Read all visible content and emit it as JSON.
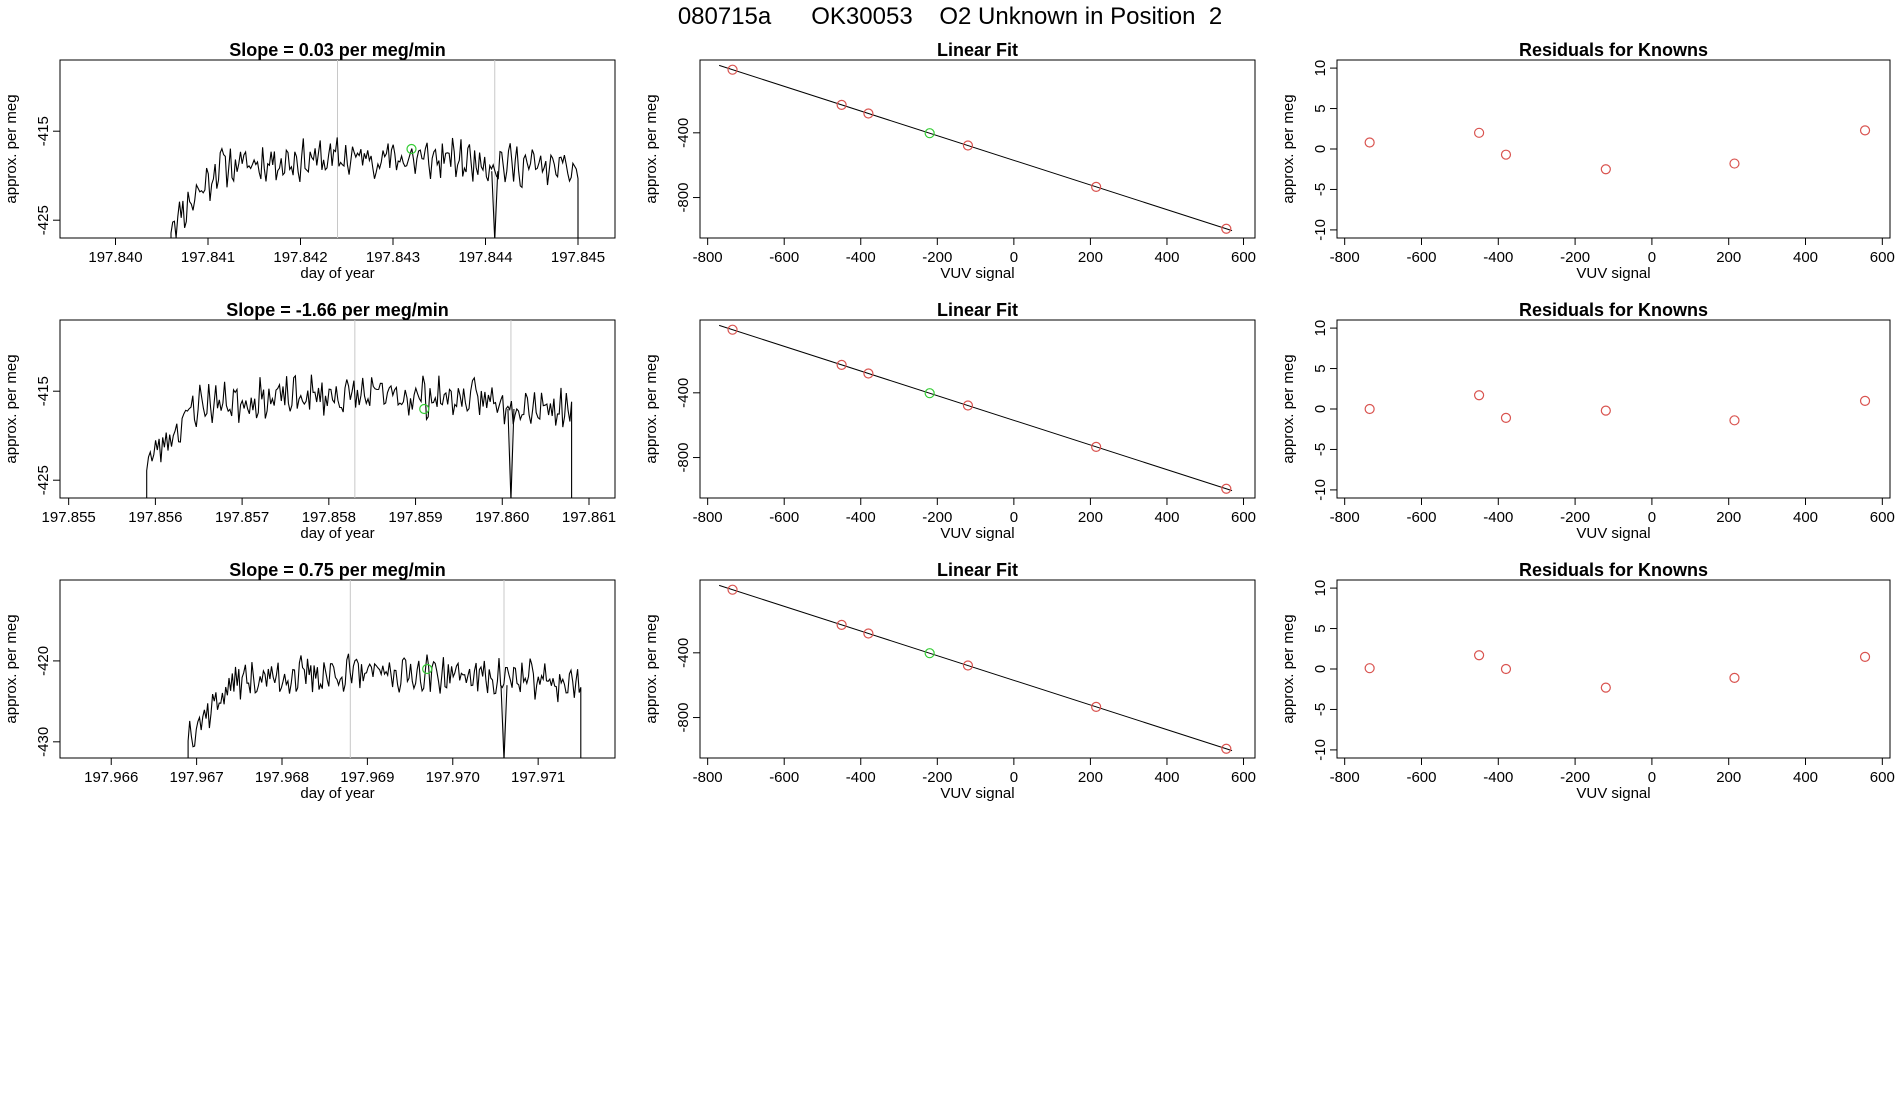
{
  "figure": {
    "title": "080715a      OK30053    O2 Unknown in Position  2"
  },
  "colors": {
    "trace": "#000000",
    "marker_known": "#d9534f",
    "marker_unknown": "#33cc33",
    "vline": "#c8c8c8"
  },
  "chart_data": [
    {
      "type": "line",
      "panel": "timeseries",
      "title": "Slope =  0.03  per meg/min",
      "xlabel": "day of year",
      "ylabel": "approx. per meg",
      "xlim": [
        197.8394,
        197.8454
      ],
      "ylim": [
        -427,
        -407
      ],
      "xticks": [
        197.84,
        197.841,
        197.842,
        197.843,
        197.844,
        197.845
      ],
      "xtick_labels": [
        "197.840",
        "197.841",
        "197.842",
        "197.843",
        "197.844",
        "197.845"
      ],
      "yticks": [
        -415,
        -425
      ],
      "ytick_labels": [
        "-415",
        "-425"
      ],
      "series": [
        {
          "name": "signal",
          "x_start": 197.8406,
          "x_end": 197.845,
          "base": -419.5,
          "amplitude": 1.8,
          "seed": 11
        }
      ],
      "vlines": [
        197.8424,
        197.8441
      ],
      "marker": {
        "x": 197.8432,
        "y": -417
      }
    },
    {
      "type": "scatter",
      "panel": "fit",
      "title": "Linear Fit",
      "xlabel": "VUV signal",
      "ylabel": "approx. per meg",
      "xlim": [
        -820,
        630
      ],
      "ylim": [
        -1050,
        50
      ],
      "xticks": [
        -800,
        -600,
        -400,
        -200,
        0,
        200,
        400,
        600
      ],
      "xtick_labels": [
        "-800",
        "-600",
        "-400",
        "-200",
        "0",
        "200",
        "400",
        "600"
      ],
      "yticks": [
        -400,
        -800
      ],
      "ytick_labels": [
        "-400",
        "-800"
      ],
      "series": [
        {
          "name": "knowns",
          "x": [
            -735,
            -450,
            -380,
            -120,
            215,
            555
          ],
          "y": [
            -10,
            -240,
            -285,
            -485,
            -750,
            -1005
          ]
        }
      ],
      "fit": {
        "slope": -0.762,
        "intercept": -570,
        "x_range": [
          -770,
          570
        ]
      },
      "marker": {
        "x": -220,
        "y": -400
      }
    },
    {
      "type": "scatter",
      "panel": "residuals",
      "title": "Residuals for Knowns",
      "xlabel": "VUV signal",
      "ylabel": "approx. per meg",
      "xlim": [
        -820,
        620
      ],
      "ylim": [
        -11,
        11
      ],
      "xticks": [
        -800,
        -600,
        -400,
        -200,
        0,
        200,
        400,
        600
      ],
      "xtick_labels": [
        "-800",
        "-600",
        "-400",
        "-200",
        "0",
        "200",
        "400",
        "600"
      ],
      "yticks": [
        10,
        5,
        0,
        -5,
        -10
      ],
      "ytick_labels": [
        "10",
        "5",
        "0",
        "-5",
        "-10"
      ],
      "series": [
        {
          "name": "residuals",
          "x": [
            -735,
            -450,
            -380,
            -120,
            215,
            555
          ],
          "y": [
            0.8,
            2.0,
            -0.7,
            -2.5,
            -1.8,
            2.3
          ]
        }
      ]
    },
    {
      "type": "line",
      "panel": "timeseries",
      "title": "Slope =  -1.66  per meg/min",
      "xlabel": "day of year",
      "ylabel": "approx. per meg",
      "xlim": [
        197.8549,
        197.8613
      ],
      "ylim": [
        -427,
        -407
      ],
      "xticks": [
        197.855,
        197.856,
        197.857,
        197.858,
        197.859,
        197.86,
        197.861
      ],
      "xtick_labels": [
        "197.855",
        "197.856",
        "197.857",
        "197.858",
        "197.859",
        "197.860",
        "197.861"
      ],
      "yticks": [
        -415,
        -425
      ],
      "ytick_labels": [
        "-415",
        "-425"
      ],
      "series": [
        {
          "name": "signal",
          "x_start": 197.8559,
          "x_end": 197.8608,
          "base": -417,
          "amplitude": 1.8,
          "seed": 23
        }
      ],
      "vlines": [
        197.8583,
        197.8601
      ],
      "marker": {
        "x": 197.8591,
        "y": -417
      }
    },
    {
      "type": "scatter",
      "panel": "fit",
      "title": "Linear Fit",
      "xlabel": "VUV signal",
      "ylabel": "approx. per meg",
      "xlim": [
        -820,
        630
      ],
      "ylim": [
        -1050,
        50
      ],
      "xticks": [
        -800,
        -600,
        -400,
        -200,
        0,
        200,
        400,
        600
      ],
      "xtick_labels": [
        "-800",
        "-600",
        "-400",
        "-200",
        "0",
        "200",
        "400",
        "600"
      ],
      "yticks": [
        -400,
        -800
      ],
      "ytick_labels": [
        "-400",
        "-800"
      ],
      "series": [
        {
          "name": "knowns",
          "x": [
            -735,
            -450,
            -380,
            -120,
            215,
            555
          ],
          "y": [
            -10,
            -240,
            -285,
            -485,
            -750,
            -1005
          ]
        }
      ],
      "fit": {
        "slope": -0.762,
        "intercept": -570,
        "x_range": [
          -770,
          570
        ]
      },
      "marker": {
        "x": -220,
        "y": -400
      }
    },
    {
      "type": "scatter",
      "panel": "residuals",
      "title": "Residuals for Knowns",
      "xlabel": "VUV signal",
      "ylabel": "approx. per meg",
      "xlim": [
        -820,
        620
      ],
      "ylim": [
        -11,
        11
      ],
      "xticks": [
        -800,
        -600,
        -400,
        -200,
        0,
        200,
        400,
        600
      ],
      "xtick_labels": [
        "-800",
        "-600",
        "-400",
        "-200",
        "0",
        "200",
        "400",
        "600"
      ],
      "yticks": [
        10,
        5,
        0,
        -5,
        -10
      ],
      "ytick_labels": [
        "10",
        "5",
        "0",
        "-5",
        "-10"
      ],
      "series": [
        {
          "name": "residuals",
          "x": [
            -735,
            -450,
            -380,
            -120,
            215,
            555
          ],
          "y": [
            0.0,
            1.7,
            -1.1,
            -0.2,
            -1.4,
            1.0
          ]
        }
      ]
    },
    {
      "type": "line",
      "panel": "timeseries",
      "title": "Slope =  0.75  per meg/min",
      "xlabel": "day of year",
      "ylabel": "approx. per meg",
      "xlim": [
        197.9654,
        197.9719
      ],
      "ylim": [
        -432,
        -410
      ],
      "xticks": [
        197.966,
        197.967,
        197.968,
        197.969,
        197.97,
        197.971
      ],
      "xtick_labels": [
        "197.966",
        "197.967",
        "197.968",
        "197.969",
        "197.970",
        "197.971"
      ],
      "yticks": [
        -420,
        -430
      ],
      "ytick_labels": [
        "-420",
        "-430"
      ],
      "series": [
        {
          "name": "signal",
          "x_start": 197.9669,
          "x_end": 197.9715,
          "base": -423,
          "amplitude": 1.8,
          "seed": 37
        }
      ],
      "vlines": [
        197.9688,
        197.9706
      ],
      "marker": {
        "x": 197.9697,
        "y": -421
      }
    },
    {
      "type": "scatter",
      "panel": "fit",
      "title": "Linear Fit",
      "xlabel": "VUV signal",
      "ylabel": "approx. per meg",
      "xlim": [
        -820,
        630
      ],
      "ylim": [
        -1050,
        50
      ],
      "xticks": [
        -800,
        -600,
        -400,
        -200,
        0,
        200,
        400,
        600
      ],
      "xtick_labels": [
        "-800",
        "-600",
        "-400",
        "-200",
        "0",
        "200",
        "400",
        "600"
      ],
      "yticks": [
        -400,
        -800
      ],
      "ytick_labels": [
        "-400",
        "-800"
      ],
      "series": [
        {
          "name": "knowns",
          "x": [
            -735,
            -450,
            -380,
            -120,
            215,
            555
          ],
          "y": [
            -10,
            -240,
            -285,
            -485,
            -750,
            -1005
          ]
        }
      ],
      "fit": {
        "slope": -0.762,
        "intercept": -570,
        "x_range": [
          -770,
          570
        ]
      },
      "marker": {
        "x": -220,
        "y": -400
      }
    },
    {
      "type": "scatter",
      "panel": "residuals",
      "title": "Residuals for Knowns",
      "xlabel": "VUV signal",
      "ylabel": "approx. per meg",
      "xlim": [
        -820,
        620
      ],
      "ylim": [
        -11,
        11
      ],
      "xticks": [
        -800,
        -600,
        -400,
        -200,
        0,
        200,
        400,
        600
      ],
      "xtick_labels": [
        "-800",
        "-600",
        "-400",
        "-200",
        "0",
        "200",
        "400",
        "600"
      ],
      "yticks": [
        10,
        5,
        0,
        -5,
        -10
      ],
      "ytick_labels": [
        "10",
        "5",
        "0",
        "-5",
        "-10"
      ],
      "series": [
        {
          "name": "residuals",
          "x": [
            -735,
            -450,
            -380,
            -120,
            215,
            555
          ],
          "y": [
            0.1,
            1.7,
            0.0,
            -2.3,
            -1.1,
            1.5
          ]
        }
      ]
    }
  ]
}
